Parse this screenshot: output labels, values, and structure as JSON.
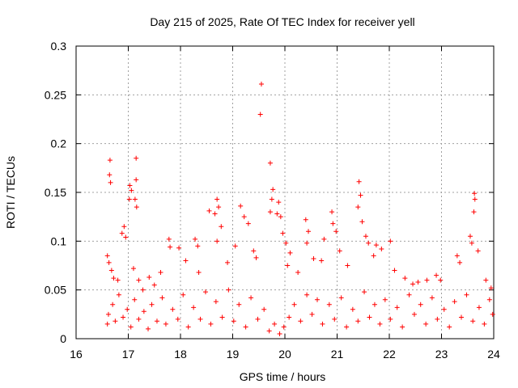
{
  "chart_data": {
    "type": "scatter",
    "title": "Day 215 of 2025, Rate Of TEC Index for receiver yell",
    "xlabel": "GPS time / hours",
    "ylabel": "ROTI / TECUs",
    "xlim": [
      16,
      24
    ],
    "ylim": [
      0,
      0.3
    ],
    "xticks": [
      16,
      17,
      18,
      19,
      20,
      21,
      22,
      23,
      24
    ],
    "yticks": [
      0,
      0.05,
      0.1,
      0.15,
      0.2,
      0.25,
      0.3
    ],
    "ytick_labels": [
      "0",
      "0.05",
      "0.1",
      "0.15",
      "0.2",
      "0.25",
      "0.3"
    ],
    "grid": true,
    "marker": "+",
    "color": "#ff0000",
    "series": [
      {
        "name": "ROTI",
        "points": [
          [
            16.65,
            0.183
          ],
          [
            16.64,
            0.168
          ],
          [
            16.66,
            0.16
          ],
          [
            17.15,
            0.185
          ],
          [
            17.15,
            0.163
          ],
          [
            17.03,
            0.157
          ],
          [
            17.06,
            0.152
          ],
          [
            17.02,
            0.143
          ],
          [
            17.13,
            0.143
          ],
          [
            17.16,
            0.135
          ],
          [
            16.92,
            0.115
          ],
          [
            16.88,
            0.108
          ],
          [
            16.95,
            0.104
          ],
          [
            16.6,
            0.085
          ],
          [
            16.63,
            0.078
          ],
          [
            16.68,
            0.07
          ],
          [
            16.72,
            0.062
          ],
          [
            16.8,
            0.06
          ],
          [
            17.1,
            0.072
          ],
          [
            17.2,
            0.06
          ],
          [
            17.28,
            0.05
          ],
          [
            17.4,
            0.063
          ],
          [
            17.5,
            0.055
          ],
          [
            17.62,
            0.068
          ],
          [
            17.78,
            0.102
          ],
          [
            17.8,
            0.094
          ],
          [
            17.97,
            0.093
          ],
          [
            18.1,
            0.08
          ],
          [
            18.28,
            0.102
          ],
          [
            18.33,
            0.095
          ],
          [
            18.35,
            0.068
          ],
          [
            18.55,
            0.131
          ],
          [
            18.7,
            0.143
          ],
          [
            18.73,
            0.135
          ],
          [
            18.66,
            0.128
          ],
          [
            18.78,
            0.115
          ],
          [
            18.7,
            0.1
          ],
          [
            18.9,
            0.078
          ],
          [
            19.05,
            0.095
          ],
          [
            19.15,
            0.136
          ],
          [
            19.22,
            0.125
          ],
          [
            19.3,
            0.118
          ],
          [
            19.4,
            0.09
          ],
          [
            19.45,
            0.083
          ],
          [
            19.55,
            0.261
          ],
          [
            19.53,
            0.23
          ],
          [
            19.72,
            0.18
          ],
          [
            19.77,
            0.153
          ],
          [
            19.75,
            0.143
          ],
          [
            19.72,
            0.13
          ],
          [
            19.88,
            0.14
          ],
          [
            19.85,
            0.128
          ],
          [
            19.92,
            0.125
          ],
          [
            19.96,
            0.108
          ],
          [
            20.02,
            0.098
          ],
          [
            20.1,
            0.088
          ],
          [
            20.05,
            0.075
          ],
          [
            20.25,
            0.068
          ],
          [
            20.4,
            0.122
          ],
          [
            20.45,
            0.11
          ],
          [
            20.42,
            0.098
          ],
          [
            20.55,
            0.082
          ],
          [
            20.7,
            0.08
          ],
          [
            20.75,
            0.102
          ],
          [
            20.9,
            0.13
          ],
          [
            20.92,
            0.118
          ],
          [
            20.98,
            0.11
          ],
          [
            21.05,
            0.09
          ],
          [
            21.2,
            0.075
          ],
          [
            21.42,
            0.161
          ],
          [
            21.45,
            0.147
          ],
          [
            21.4,
            0.135
          ],
          [
            21.48,
            0.12
          ],
          [
            21.55,
            0.105
          ],
          [
            21.6,
            0.098
          ],
          [
            21.7,
            0.085
          ],
          [
            21.75,
            0.096
          ],
          [
            21.85,
            0.092
          ],
          [
            22.02,
            0.1
          ],
          [
            22.1,
            0.07
          ],
          [
            22.3,
            0.062
          ],
          [
            22.45,
            0.056
          ],
          [
            22.55,
            0.058
          ],
          [
            22.72,
            0.06
          ],
          [
            22.9,
            0.065
          ],
          [
            22.98,
            0.06
          ],
          [
            23.3,
            0.085
          ],
          [
            23.35,
            0.078
          ],
          [
            23.55,
            0.105
          ],
          [
            23.58,
            0.098
          ],
          [
            23.63,
            0.149
          ],
          [
            23.64,
            0.143
          ],
          [
            23.62,
            0.13
          ],
          [
            23.7,
            0.09
          ],
          [
            23.85,
            0.06
          ],
          [
            23.95,
            0.052
          ],
          [
            16.6,
            0.015
          ],
          [
            16.62,
            0.025
          ],
          [
            16.7,
            0.035
          ],
          [
            16.75,
            0.018
          ],
          [
            16.82,
            0.045
          ],
          [
            16.9,
            0.022
          ],
          [
            16.98,
            0.03
          ],
          [
            17.05,
            0.012
          ],
          [
            17.12,
            0.04
          ],
          [
            17.2,
            0.02
          ],
          [
            17.3,
            0.028
          ],
          [
            17.38,
            0.01
          ],
          [
            17.45,
            0.035
          ],
          [
            17.55,
            0.018
          ],
          [
            17.65,
            0.042
          ],
          [
            17.72,
            0.015
          ],
          [
            17.85,
            0.03
          ],
          [
            17.95,
            0.02
          ],
          [
            18.05,
            0.045
          ],
          [
            18.15,
            0.012
          ],
          [
            18.25,
            0.032
          ],
          [
            18.38,
            0.02
          ],
          [
            18.48,
            0.048
          ],
          [
            18.58,
            0.015
          ],
          [
            18.68,
            0.038
          ],
          [
            18.8,
            0.022
          ],
          [
            18.92,
            0.05
          ],
          [
            19.02,
            0.018
          ],
          [
            19.12,
            0.035
          ],
          [
            19.25,
            0.012
          ],
          [
            19.35,
            0.042
          ],
          [
            19.48,
            0.02
          ],
          [
            19.6,
            0.03
          ],
          [
            19.7,
            0.008
          ],
          [
            19.8,
            0.015
          ],
          [
            19.9,
            0.005
          ],
          [
            19.98,
            0.012
          ],
          [
            20.08,
            0.022
          ],
          [
            20.18,
            0.035
          ],
          [
            20.3,
            0.018
          ],
          [
            20.42,
            0.045
          ],
          [
            20.52,
            0.025
          ],
          [
            20.62,
            0.04
          ],
          [
            20.72,
            0.015
          ],
          [
            20.85,
            0.035
          ],
          [
            20.95,
            0.02
          ],
          [
            21.08,
            0.042
          ],
          [
            21.18,
            0.012
          ],
          [
            21.3,
            0.03
          ],
          [
            21.4,
            0.018
          ],
          [
            21.52,
            0.048
          ],
          [
            21.62,
            0.022
          ],
          [
            21.72,
            0.035
          ],
          [
            21.82,
            0.015
          ],
          [
            21.92,
            0.04
          ],
          [
            22.02,
            0.02
          ],
          [
            22.15,
            0.032
          ],
          [
            22.25,
            0.012
          ],
          [
            22.38,
            0.045
          ],
          [
            22.48,
            0.025
          ],
          [
            22.6,
            0.035
          ],
          [
            22.7,
            0.015
          ],
          [
            22.82,
            0.042
          ],
          [
            22.92,
            0.02
          ],
          [
            23.05,
            0.03
          ],
          [
            23.15,
            0.012
          ],
          [
            23.25,
            0.038
          ],
          [
            23.38,
            0.022
          ],
          [
            23.48,
            0.045
          ],
          [
            23.6,
            0.018
          ],
          [
            23.72,
            0.032
          ],
          [
            23.82,
            0.015
          ],
          [
            23.92,
            0.04
          ],
          [
            23.98,
            0.025
          ]
        ]
      }
    ]
  }
}
